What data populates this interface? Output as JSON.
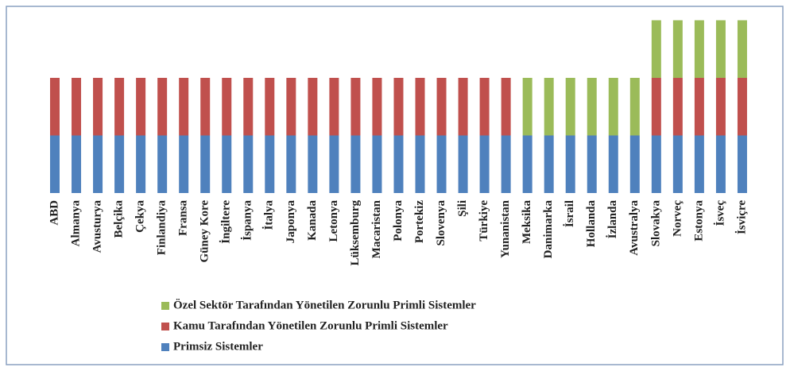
{
  "chart_data": {
    "type": "stacked-bar",
    "categories": [
      "ABD",
      "Almanya",
      "Avusturya",
      "Belçika",
      "Çekya",
      "Finlandiya",
      "Fransa",
      "Güney Kore",
      "İngiltere",
      "İspanya",
      "İtalya",
      "Japonya",
      "Kanada",
      "Letonya",
      "Lüksemburg",
      "Macaristan",
      "Polonya",
      "Portekiz",
      "Slovenya",
      "Şili",
      "Türkiye",
      "Yunanistan",
      "Meksika",
      "Danimarka",
      "İsrail",
      "Hollanda",
      "İzlanda",
      "Avustralya",
      "Slovakya",
      "Norveç",
      "Estonya",
      "İsveç",
      "İsviçre"
    ],
    "series": [
      {
        "name": "Özel Sektör Tarafından Yönetilen Zorunlu Primli Sistemler",
        "color": "#9bbb59",
        "values": [
          0,
          0,
          0,
          0,
          0,
          0,
          0,
          0,
          0,
          0,
          0,
          0,
          0,
          0,
          0,
          0,
          0,
          0,
          0,
          0,
          0,
          0,
          1,
          1,
          1,
          1,
          1,
          1,
          1,
          1,
          1,
          1,
          1
        ]
      },
      {
        "name": "Kamu Tarafından Yönetilen Zorunlu Primli Sistemler",
        "color": "#c0504d",
        "values": [
          1,
          1,
          1,
          1,
          1,
          1,
          1,
          1,
          1,
          1,
          1,
          1,
          1,
          1,
          1,
          1,
          1,
          1,
          1,
          1,
          1,
          1,
          0,
          0,
          0,
          0,
          0,
          0,
          1,
          1,
          1,
          1,
          1
        ]
      },
      {
        "name": "Primsiz Sistemler",
        "color": "#4f81bd",
        "values": [
          1,
          1,
          1,
          1,
          1,
          1,
          1,
          1,
          1,
          1,
          1,
          1,
          1,
          1,
          1,
          1,
          1,
          1,
          1,
          1,
          1,
          1,
          1,
          1,
          1,
          1,
          1,
          1,
          1,
          1,
          1,
          1,
          1
        ]
      }
    ],
    "ylim": [
      0,
      3
    ]
  }
}
